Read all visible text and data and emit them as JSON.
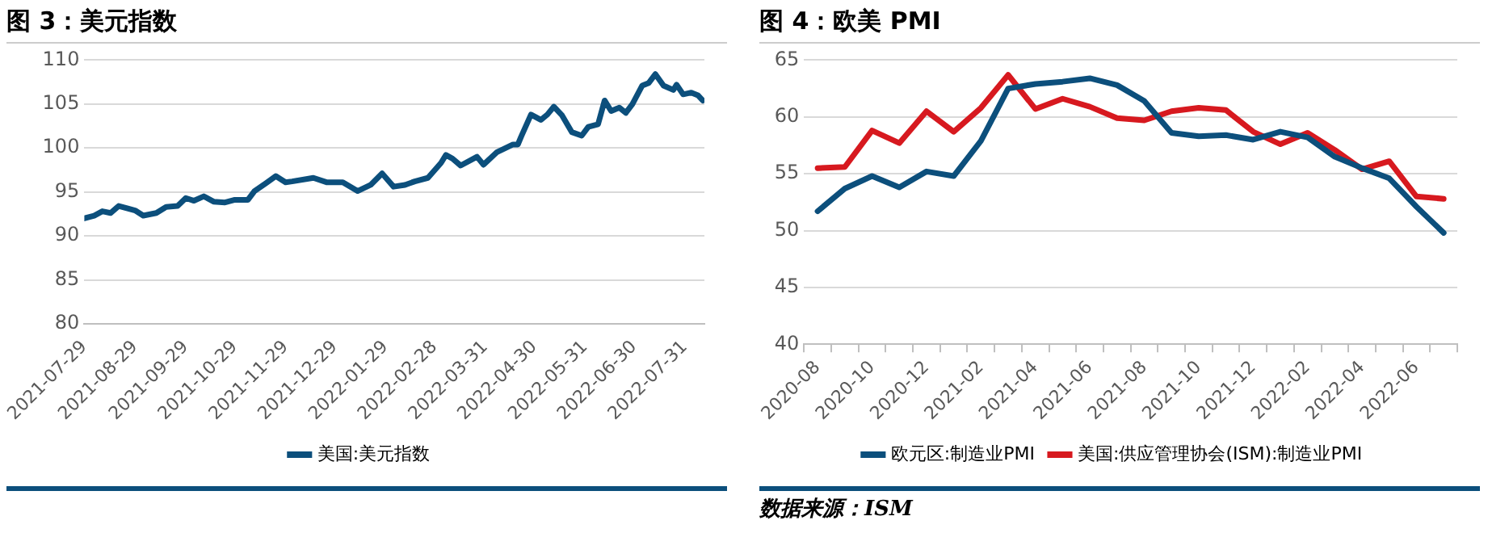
{
  "chart_data": [
    {
      "type": "line",
      "title": "图 3：美元指数",
      "x": [
        "2021-07-29",
        "2021-08-04",
        "2021-08-09",
        "2021-08-14",
        "2021-08-19",
        "2021-08-29",
        "2021-09-03",
        "2021-09-11",
        "2021-09-17",
        "2021-09-24",
        "2021-09-29",
        "2021-10-04",
        "2021-10-10",
        "2021-10-16",
        "2021-10-23",
        "2021-10-29",
        "2021-11-06",
        "2021-11-10",
        "2021-11-17",
        "2021-11-23",
        "2021-11-29",
        "2021-12-03",
        "2021-12-16",
        "2021-12-24",
        "2022-01-03",
        "2022-01-12",
        "2022-01-20",
        "2022-01-27",
        "2022-02-03",
        "2022-02-10",
        "2022-02-16",
        "2022-02-24",
        "2022-03-04",
        "2022-03-07",
        "2022-03-11",
        "2022-03-16",
        "2022-03-26",
        "2022-03-30",
        "2022-04-07",
        "2022-04-17",
        "2022-04-20",
        "2022-04-22",
        "2022-04-28",
        "2022-05-04",
        "2022-05-08",
        "2022-05-12",
        "2022-05-17",
        "2022-05-23",
        "2022-05-29",
        "2022-06-02",
        "2022-06-08",
        "2022-06-12",
        "2022-06-16",
        "2022-06-21",
        "2022-06-25",
        "2022-06-29",
        "2022-07-05",
        "2022-07-09",
        "2022-07-13",
        "2022-07-18",
        "2022-07-24",
        "2022-07-26",
        "2022-07-30",
        "2022-08-04",
        "2022-08-08",
        "2022-08-11"
      ],
      "series": [
        {
          "name": "美国:美元指数",
          "color": "#0c4f7c",
          "values": [
            92.0,
            92.3,
            92.8,
            92.6,
            93.4,
            92.9,
            92.3,
            92.6,
            93.3,
            93.4,
            94.3,
            94.0,
            94.5,
            93.9,
            93.8,
            94.1,
            94.1,
            95.1,
            96.0,
            96.8,
            96.1,
            96.2,
            96.6,
            96.1,
            96.1,
            95.1,
            95.8,
            97.1,
            95.6,
            95.8,
            96.2,
            96.6,
            98.3,
            99.2,
            98.8,
            98.0,
            99.0,
            98.1,
            99.5,
            100.4,
            100.4,
            101.3,
            103.8,
            103.2,
            103.8,
            104.7,
            103.7,
            101.8,
            101.4,
            102.4,
            102.7,
            105.4,
            104.2,
            104.6,
            104.0,
            105.0,
            107.1,
            107.4,
            108.4,
            107.1,
            106.6,
            107.2,
            106.1,
            106.3,
            106.0,
            105.4
          ]
        }
      ],
      "xlim": [
        "2021-07-29",
        "2022-08-12"
      ],
      "xticks": [
        "2021-07-29",
        "2021-08-29",
        "2021-09-29",
        "2021-10-29",
        "2021-11-29",
        "2021-12-29",
        "2022-01-29",
        "2022-02-28",
        "2022-03-31",
        "2022-04-30",
        "2022-05-31",
        "2022-06-30",
        "2022-07-31"
      ],
      "ylim": [
        80,
        110
      ],
      "yticks": [
        80,
        85,
        90,
        95,
        100,
        105,
        110
      ],
      "grid": "y",
      "legend": "bottom",
      "marker": "none",
      "line_style": "solid"
    },
    {
      "type": "line",
      "title": "图 4：欧美 PMI",
      "categories": [
        "2020-08",
        null,
        "2020-10",
        null,
        "2020-12",
        null,
        "2021-02",
        null,
        "2021-04",
        null,
        "2021-06",
        null,
        "2021-08",
        null,
        "2021-10",
        null,
        "2021-12",
        null,
        "2022-02",
        null,
        "2022-04",
        null,
        "2022-06",
        null
      ],
      "series": [
        {
          "name": "欧元区:制造业PMI",
          "color": "#0c4f7c",
          "values": [
            51.7,
            53.7,
            54.8,
            53.8,
            55.2,
            54.8,
            57.9,
            62.5,
            62.9,
            63.1,
            63.4,
            62.8,
            61.4,
            58.6,
            58.3,
            58.4,
            58.0,
            58.7,
            58.2,
            56.5,
            55.5,
            54.6,
            52.1,
            49.8
          ]
        },
        {
          "name": "美国:供应管理协会(ISM):制造业PMI",
          "color": "#d7191f",
          "values": [
            55.5,
            55.6,
            58.8,
            57.7,
            60.5,
            58.7,
            60.8,
            63.7,
            60.7,
            61.6,
            60.9,
            59.9,
            59.7,
            60.5,
            60.8,
            60.6,
            58.7,
            57.6,
            58.6,
            57.1,
            55.4,
            56.1,
            53.0,
            52.8
          ]
        }
      ],
      "ylim": [
        40,
        65
      ],
      "yticks": [
        40,
        45,
        50,
        55,
        60,
        65
      ],
      "grid": "y",
      "legend": "bottom",
      "marker": "none",
      "line_style": "solid",
      "annotations": [
        "数据来源：ISM"
      ]
    }
  ]
}
